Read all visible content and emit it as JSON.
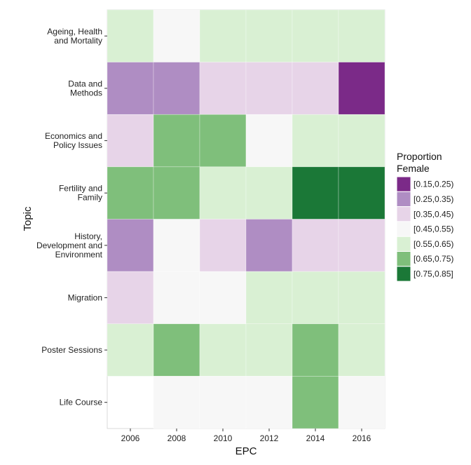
{
  "chart_data": {
    "type": "heatmap",
    "xlabel": "EPC",
    "ylabel": "Topic",
    "x": [
      "2006",
      "2008",
      "2010",
      "2012",
      "2014",
      "2016"
    ],
    "y": [
      "Ageing, Health\nand Mortality",
      "Data and\nMethods",
      "Economics and\nPolicy Issues",
      "Fertility and\nFamily",
      "History,\nDevelopment and\nEnvironment",
      "Migration",
      "Poster Sessions",
      "Life Course"
    ],
    "legend": {
      "title": "Proportion\nFemale",
      "placement": "right",
      "bins": [
        {
          "label": "[0.15,0.25)",
          "color": "#7b2a88"
        },
        {
          "label": "[0.25,0.35)",
          "color": "#af8dc3"
        },
        {
          "label": "[0.35,0.45)",
          "color": "#e7d4e8"
        },
        {
          "label": "[0.45,0.55)",
          "color": "#f7f7f7"
        },
        {
          "label": "[0.55,0.65)",
          "color": "#d9f0d3"
        },
        {
          "label": "[0.65,0.75)",
          "color": "#7fbf7b"
        },
        {
          "label": "[0.75,0.85]",
          "color": "#1b7837"
        }
      ]
    },
    "cells": [
      [
        4,
        3,
        4,
        4,
        4,
        4
      ],
      [
        1,
        1,
        2,
        2,
        2,
        0
      ],
      [
        2,
        5,
        5,
        3,
        4,
        4
      ],
      [
        5,
        5,
        4,
        4,
        6,
        6
      ],
      [
        1,
        3,
        2,
        1,
        2,
        2
      ],
      [
        2,
        3,
        3,
        4,
        4,
        4
      ],
      [
        4,
        5,
        4,
        4,
        5,
        4
      ],
      [
        null,
        3,
        3,
        3,
        5,
        3
      ]
    ]
  }
}
